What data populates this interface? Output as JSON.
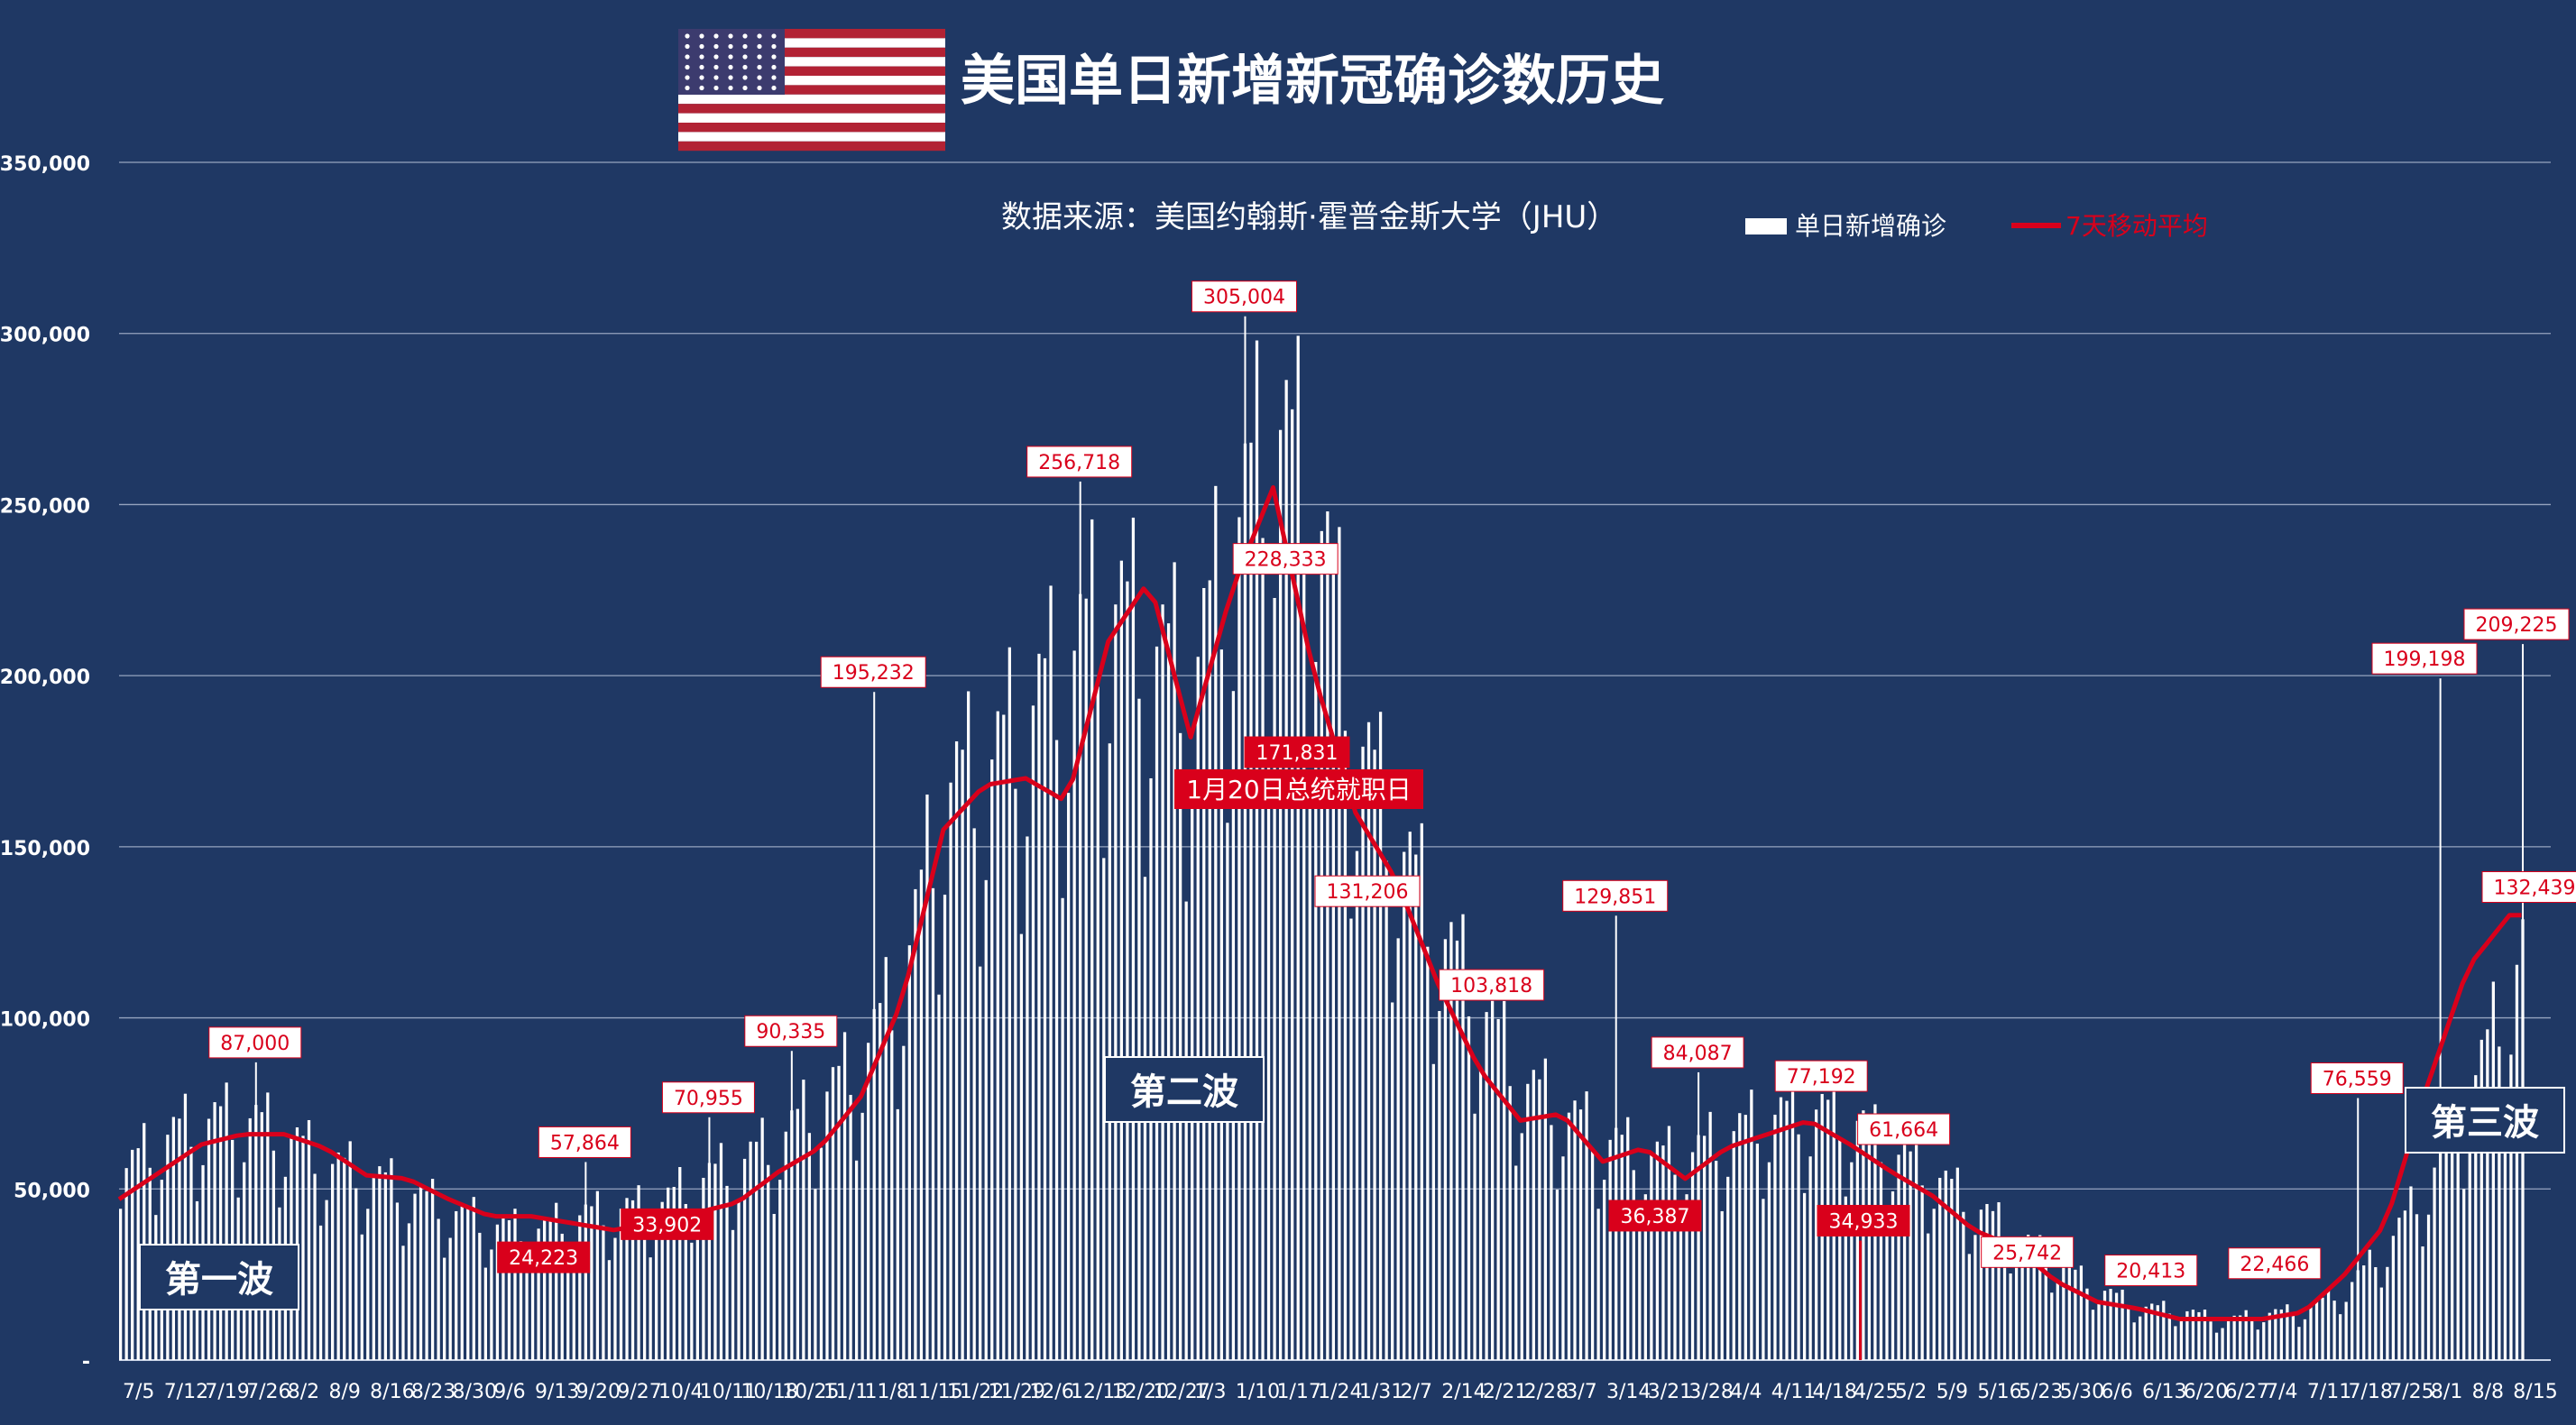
{
  "chart_data": {
    "type": "bar",
    "title": "美国单日新增新冠确诊数历史",
    "subtitle": "数据来源：美国约翰斯·霍普金斯大学（JHU）",
    "xlabel": "",
    "ylabel": "",
    "ylim": [
      0,
      350000
    ],
    "yticks": [
      0,
      50000,
      100000,
      150000,
      200000,
      250000,
      300000,
      350000
    ],
    "ytick_labels": [
      "-",
      "50,000",
      "100,000",
      "150,000",
      "200,000",
      "250,000",
      "300,000",
      "350,000"
    ],
    "grid": true,
    "legend": {
      "position": "top-right",
      "entries": [
        {
          "name": "单日新增确诊",
          "color": "#ffffff"
        },
        {
          "name": "7天移动平均",
          "color": "#d9001b"
        }
      ]
    },
    "x_tick_labels": [
      "7/5",
      "7/12",
      "7/19",
      "7/26",
      "8/2",
      "8/9",
      "8/16",
      "8/23",
      "8/30",
      "9/6",
      "9/13",
      "9/20",
      "9/27",
      "10/4",
      "10/11",
      "10/18",
      "10/25",
      "11/1",
      "11/8",
      "11/15",
      "11/22",
      "11/29",
      "12/6",
      "12/13",
      "12/20",
      "12/27",
      "1/3",
      "1/10",
      "1/17",
      "1/24",
      "1/31",
      "2/7",
      "2/14",
      "2/21",
      "2/28",
      "3/7",
      "3/14",
      "3/21",
      "3/28",
      "4/4",
      "4/11",
      "4/18",
      "4/25",
      "5/2",
      "5/9",
      "5/16",
      "5/23",
      "5/30",
      "6/6",
      "6/13",
      "6/20",
      "6/27",
      "7/4",
      "7/11",
      "7/18",
      "7/25",
      "8/1",
      "8/8",
      "8/15"
    ],
    "series": [
      {
        "name": "单日新增确诊",
        "weekly_approx": [
          52000,
          62000,
          67000,
          68000,
          63000,
          55000,
          52000,
          47000,
          42000,
          38000,
          36000,
          40000,
          42000,
          43000,
          50000,
          55000,
          62000,
          73000,
          85000,
          108000,
          160000,
          165000,
          180000,
          195000,
          212000,
          200000,
          190000,
          230000,
          262000,
          240000,
          175000,
          145000,
          120000,
          100000,
          78000,
          70000,
          62000,
          57000,
          57000,
          63000,
          68000,
          70000,
          68000,
          58000,
          52000,
          43000,
          35000,
          27000,
          20000,
          15000,
          14000,
          11000,
          13000,
          14000,
          20000,
          32000,
          50000,
          75000,
          105000,
          140000
        ]
      },
      {
        "name": "7天移动平均",
        "weekly_approx": [
          47000,
          55000,
          63000,
          66000,
          66000,
          62000,
          54000,
          53000,
          47000,
          42000,
          42000,
          40000,
          38000,
          40000,
          43000,
          46000,
          55000,
          62000,
          77000,
          105000,
          155000,
          168000,
          170000,
          163000,
          210000,
          228000,
          182000,
          225000,
          255000,
          200000,
          160000,
          140000,
          110000,
          85000,
          70000,
          72000,
          58000,
          62000,
          53000,
          62000,
          66000,
          70000,
          63000,
          55000,
          48000,
          38000,
          33000,
          23000,
          17000,
          15000,
          12000,
          12000,
          12000,
          14000,
          25000,
          40000,
          80000,
          115000,
          130000
        ]
      }
    ],
    "annotations": {
      "peak_labels": [
        {
          "text": "87,000",
          "value": 87000,
          "x": "7/26"
        },
        {
          "text": "24,223",
          "value": 24223,
          "x": "9/13"
        },
        {
          "text": "57,864",
          "value": 57864,
          "x": "9/20"
        },
        {
          "text": "33,902",
          "value": 33902,
          "x": "10/4"
        },
        {
          "text": "70,955",
          "value": 70955,
          "x": "10/11"
        },
        {
          "text": "90,335",
          "value": 90335,
          "x": "10/25"
        },
        {
          "text": "195,232",
          "value": 195232,
          "x": "11/8"
        },
        {
          "text": "256,718",
          "value": 256718,
          "x": "12/13"
        },
        {
          "text": "305,004",
          "value": 305004,
          "x": "1/10"
        },
        {
          "text": "228,333",
          "value": 228333,
          "x": "1/17"
        },
        {
          "text": "171,831",
          "value": 171831,
          "x": "1/17"
        },
        {
          "text": "131,206",
          "value": 131206,
          "x": "1/31"
        },
        {
          "text": "103,818",
          "value": 103818,
          "x": "2/21"
        },
        {
          "text": "129,851",
          "value": 129851,
          "x": "3/14"
        },
        {
          "text": "84,087",
          "value": 84087,
          "x": "3/28"
        },
        {
          "text": "36,387",
          "value": 36387,
          "x": "3/21"
        },
        {
          "text": "77,192",
          "value": 77192,
          "x": "4/18"
        },
        {
          "text": "34,933",
          "value": 34933,
          "x": "4/25"
        },
        {
          "text": "61,664",
          "value": 61664,
          "x": "5/2"
        },
        {
          "text": "25,742",
          "value": 25742,
          "x": "5/23"
        },
        {
          "text": "20,413",
          "value": 20413,
          "x": "6/13"
        },
        {
          "text": "22,466",
          "value": 22466,
          "x": "7/4"
        },
        {
          "text": "76,559",
          "value": 76559,
          "x": "7/18"
        },
        {
          "text": "199,198",
          "value": 199198,
          "x": "8/1"
        },
        {
          "text": "209,225",
          "value": 209225,
          "x": "8/15"
        },
        {
          "text": "132,439",
          "value": 132439,
          "x": "8/15"
        }
      ],
      "event_label": "1月20日总统就职日",
      "waves": [
        "第一波",
        "第二波",
        "第三波"
      ]
    }
  }
}
